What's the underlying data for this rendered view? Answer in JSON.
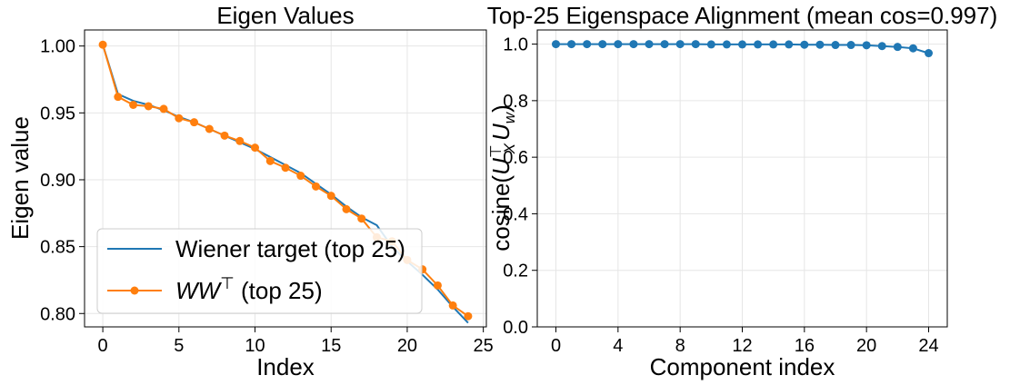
{
  "chart_data": [
    {
      "type": "line",
      "title": "Eigen Values",
      "xlabel": "Index",
      "ylabel": "Eigen value",
      "xlim": [
        -1.2,
        25.2
      ],
      "ylim": [
        0.79,
        1.012
      ],
      "xticks": [
        0,
        5,
        10,
        15,
        20,
        25
      ],
      "yticks": [
        0.8,
        0.85,
        0.9,
        0.95,
        1.0
      ],
      "xtick_labels": [
        "0",
        "5",
        "10",
        "15",
        "20",
        "25"
      ],
      "ytick_labels": [
        "0.80",
        "0.85",
        "0.90",
        "0.95",
        "1.00"
      ],
      "grid": true,
      "legend_position": "lower left",
      "series": [
        {
          "name": "Wiener target (top 25)",
          "color": "#1f77b4",
          "marker": "none",
          "x": [
            0,
            1,
            2,
            3,
            4,
            5,
            6,
            7,
            8,
            9,
            10,
            11,
            12,
            13,
            14,
            15,
            16,
            17,
            18,
            19,
            20,
            21,
            22,
            23,
            24
          ],
          "y": [
            1.001,
            0.964,
            0.959,
            0.956,
            0.952,
            0.947,
            0.943,
            0.938,
            0.933,
            0.928,
            0.923,
            0.917,
            0.911,
            0.905,
            0.897,
            0.889,
            0.88,
            0.872,
            0.866,
            0.85,
            0.839,
            0.829,
            0.818,
            0.805,
            0.793
          ]
        },
        {
          "name": "WW (top 25)",
          "color": "#ff7f0e",
          "marker": "circle",
          "x": [
            0,
            1,
            2,
            3,
            4,
            5,
            6,
            7,
            8,
            9,
            10,
            11,
            12,
            13,
            14,
            15,
            16,
            17,
            18,
            19,
            20,
            21,
            22,
            23,
            24
          ],
          "y": [
            1.001,
            0.962,
            0.956,
            0.955,
            0.953,
            0.946,
            0.943,
            0.938,
            0.933,
            0.929,
            0.924,
            0.914,
            0.909,
            0.903,
            0.895,
            0.888,
            0.878,
            0.871,
            0.857,
            0.854,
            0.84,
            0.833,
            0.821,
            0.806,
            0.798
          ]
        }
      ],
      "legend": [
        {
          "label": "Wiener target (top 25)",
          "color": "#1f77b4"
        },
        {
          "prefix": "WW",
          "superscript": "⊤",
          "suffix": " (top 25)",
          "color": "#ff7f0e"
        }
      ]
    },
    {
      "type": "line",
      "title": "Top-25 Eigenspace Alignment (mean cos=0.997)",
      "xlabel": "Component index",
      "ylabel": "cosine(U_X^T U_w)",
      "xlim": [
        -1.2,
        25.2
      ],
      "ylim": [
        0.0,
        1.05
      ],
      "xticks": [
        0,
        4,
        8,
        12,
        16,
        20,
        24
      ],
      "yticks": [
        0.0,
        0.2,
        0.4,
        0.6,
        0.8,
        1.0
      ],
      "xtick_labels": [
        "0",
        "4",
        "8",
        "12",
        "16",
        "20",
        "24"
      ],
      "ytick_labels": [
        "0.0",
        "0.2",
        "0.4",
        "0.6",
        "0.8",
        "1.0"
      ],
      "grid": true,
      "series": [
        {
          "color": "#1f77b4",
          "marker": "circle",
          "x": [
            0,
            1,
            2,
            3,
            4,
            5,
            6,
            7,
            8,
            9,
            10,
            11,
            12,
            13,
            14,
            15,
            16,
            17,
            18,
            19,
            20,
            21,
            22,
            23,
            24
          ],
          "y": [
            1.0,
            1.0,
            1.0,
            1.0,
            1.0,
            1.0,
            1.0,
            1.0,
            1.0,
            1.0,
            0.999,
            0.999,
            0.999,
            0.999,
            0.999,
            0.999,
            0.998,
            0.998,
            0.997,
            0.997,
            0.996,
            0.993,
            0.99,
            0.985,
            0.968
          ]
        }
      ]
    }
  ]
}
